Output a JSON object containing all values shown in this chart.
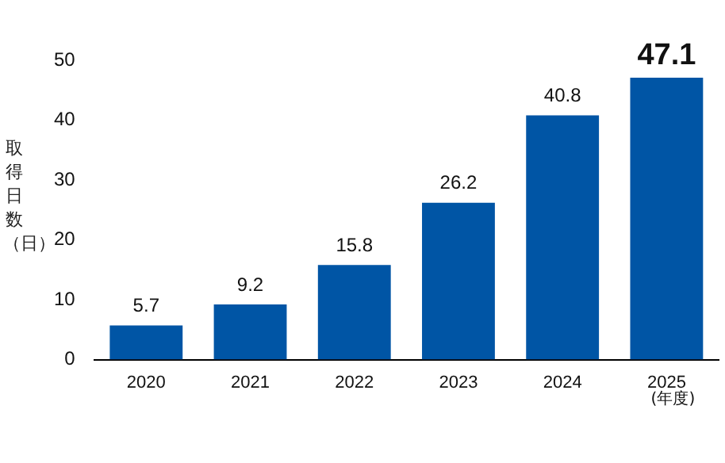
{
  "chart_data": {
    "type": "bar",
    "ylabel": "取得日数（日）",
    "categories": [
      "2020",
      "2021",
      "2022",
      "2023",
      "2024",
      "2025"
    ],
    "values": [
      5.7,
      9.2,
      15.8,
      26.2,
      40.8,
      47.1
    ],
    "color": "#0055a5",
    "ylim": [
      0,
      50
    ],
    "yticks": [
      0,
      10,
      20,
      30,
      40,
      50
    ],
    "grid": false,
    "data_labels": true,
    "annotations": [
      "(年度)"
    ]
  }
}
